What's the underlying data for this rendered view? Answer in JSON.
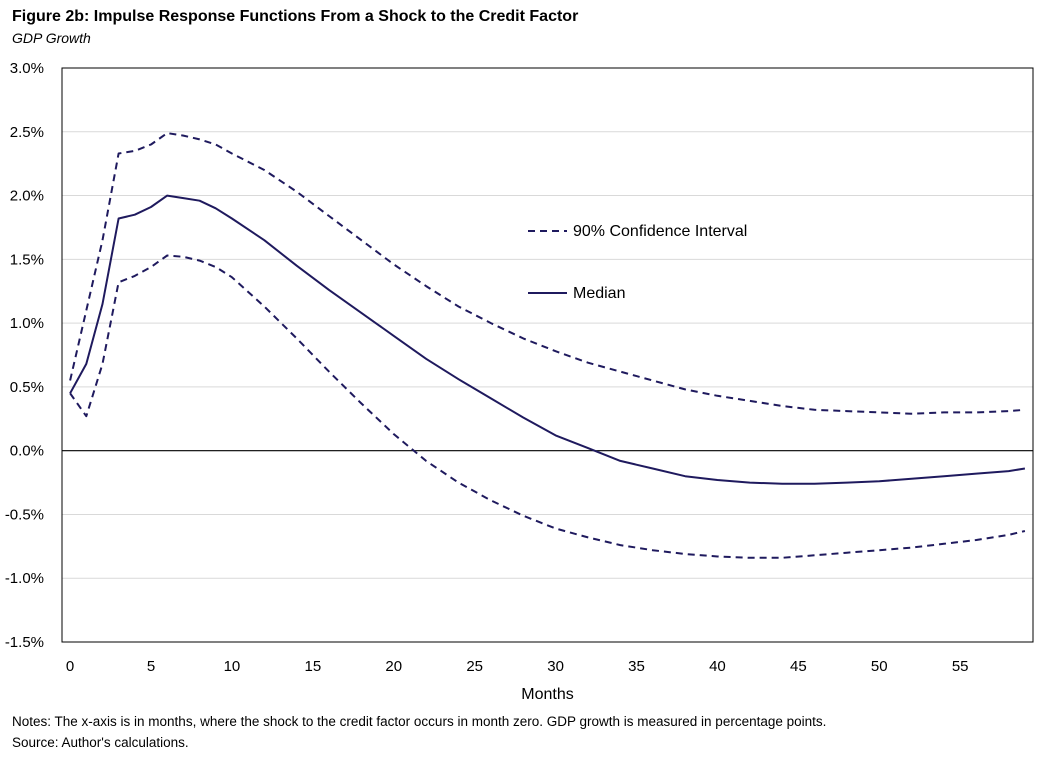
{
  "header": {
    "title": "Figure 2b: Impulse Response Functions From a Shock to the Credit Factor",
    "subtitle": "GDP Growth"
  },
  "notes": {
    "line1": "Notes: The x-axis is in months, where the shock to the credit factor occurs in month zero. GDP growth is measured in percentage points.",
    "line2": "Source: Author's calculations."
  },
  "colors": {
    "series": "#1f1a5e",
    "grid": "#d9d9d9",
    "frame": "#000000",
    "zero_line": "#000000"
  },
  "chart_data": {
    "type": "line",
    "title": "Figure 2b: Impulse Response Functions From a Shock to the Credit Factor",
    "subtitle": "GDP Growth",
    "xlabel": "Months",
    "ylabel": "",
    "xlim": [
      -0.5,
      59.5
    ],
    "ylim": [
      -1.5,
      3.0
    ],
    "x_ticks": [
      0,
      5,
      10,
      15,
      20,
      25,
      30,
      35,
      40,
      45,
      50,
      55
    ],
    "x_tick_labels": [
      "0",
      "5",
      "10",
      "15",
      "20",
      "25",
      "30",
      "35",
      "40",
      "45",
      "50",
      "55"
    ],
    "y_ticks": [
      -1.5,
      -1.0,
      -0.5,
      0.0,
      0.5,
      1.0,
      1.5,
      2.0,
      2.5,
      3.0
    ],
    "y_tick_labels": [
      "-1.5%",
      "-1.0%",
      "-0.5%",
      "0.0%",
      "0.5%",
      "1.0%",
      "1.5%",
      "2.0%",
      "2.5%",
      "3.0%"
    ],
    "grid": true,
    "legend_position": "upper-middle",
    "series": [
      {
        "name": "90% Confidence Interval",
        "style": "dashed",
        "x": [
          0,
          1,
          2,
          3,
          4,
          5,
          6,
          7,
          8,
          9,
          10,
          12,
          14,
          16,
          18,
          20,
          22,
          24,
          26,
          28,
          30,
          32,
          34,
          36,
          38,
          40,
          42,
          44,
          46,
          48,
          50,
          52,
          54,
          56,
          58,
          59
        ],
        "values": [
          0.55,
          1.1,
          1.65,
          2.33,
          2.35,
          2.4,
          2.49,
          2.47,
          2.44,
          2.4,
          2.33,
          2.2,
          2.03,
          1.84,
          1.65,
          1.46,
          1.29,
          1.13,
          1.0,
          0.88,
          0.78,
          0.69,
          0.62,
          0.55,
          0.48,
          0.43,
          0.39,
          0.35,
          0.32,
          0.31,
          0.3,
          0.29,
          0.3,
          0.3,
          0.31,
          0.32
        ]
      },
      {
        "name": "Median",
        "style": "solid",
        "x": [
          0,
          1,
          2,
          3,
          4,
          5,
          6,
          7,
          8,
          9,
          10,
          12,
          14,
          16,
          18,
          19,
          20,
          22,
          24,
          26,
          28,
          30,
          32,
          34,
          36,
          38,
          40,
          42,
          44,
          46,
          48,
          50,
          52,
          54,
          56,
          58,
          59
        ],
        "values": [
          0.45,
          0.68,
          1.15,
          1.82,
          1.85,
          1.91,
          2.0,
          1.98,
          1.96,
          1.9,
          1.82,
          1.65,
          1.45,
          1.26,
          1.08,
          0.99,
          0.9,
          0.72,
          0.56,
          0.41,
          0.26,
          0.12,
          0.02,
          -0.08,
          -0.14,
          -0.2,
          -0.23,
          -0.25,
          -0.26,
          -0.26,
          -0.25,
          -0.24,
          -0.22,
          -0.2,
          -0.18,
          -0.16,
          -0.14
        ]
      },
      {
        "name": "90% Confidence Interval (lower)",
        "style": "dashed",
        "x": [
          0,
          1,
          2,
          3,
          4,
          5,
          6,
          7,
          8,
          9,
          10,
          12,
          14,
          16,
          18,
          20,
          22,
          24,
          26,
          28,
          30,
          32,
          34,
          36,
          38,
          40,
          42,
          44,
          46,
          48,
          50,
          52,
          54,
          56,
          58,
          59
        ],
        "values": [
          0.45,
          0.27,
          0.68,
          1.32,
          1.37,
          1.44,
          1.53,
          1.52,
          1.49,
          1.44,
          1.36,
          1.13,
          0.88,
          0.62,
          0.37,
          0.13,
          -0.08,
          -0.25,
          -0.39,
          -0.51,
          -0.61,
          -0.68,
          -0.74,
          -0.78,
          -0.81,
          -0.83,
          -0.84,
          -0.84,
          -0.82,
          -0.8,
          -0.78,
          -0.76,
          -0.73,
          -0.7,
          -0.66,
          -0.63
        ]
      }
    ],
    "legend": [
      {
        "label": "90% Confidence Interval",
        "style": "dashed"
      },
      {
        "label": "Median",
        "style": "solid"
      }
    ]
  }
}
